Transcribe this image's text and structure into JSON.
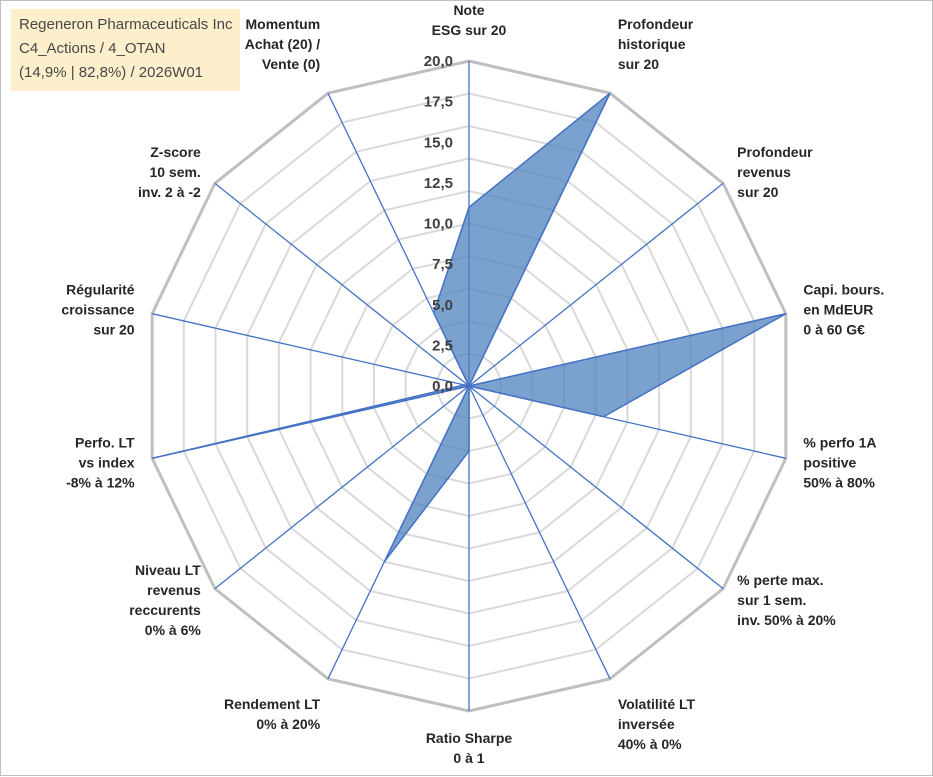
{
  "chart_data": {
    "type": "radar",
    "title": [
      "Regeneron Pharmaceuticals Inc",
      "C4_Actions / 4_OTAN",
      "(14,9% | 82,8%) / 2026W01"
    ],
    "rlim": [
      0,
      20
    ],
    "ticks": [
      "0,0",
      "2,5",
      "5,0",
      "7,5",
      "10,0",
      "12,5",
      "15,0",
      "17,5",
      "20,0"
    ],
    "grid_levels": 10,
    "axes": [
      [
        "Note",
        "ESG sur 20"
      ],
      [
        "Profondeur",
        "historique",
        "sur 20"
      ],
      [
        "Profondeur",
        "revenus",
        "sur 20"
      ],
      [
        "Capi. bours.",
        "en MdEUR",
        "0 à 60 G€"
      ],
      [
        "% perfo 1A",
        "positive",
        "50% à 80%"
      ],
      [
        "% perte max.",
        "sur 1 sem.",
        "inv. 50% à 20%"
      ],
      [
        "Volatilité LT",
        "inversée",
        "40% à 0%"
      ],
      [
        "Ratio Sharpe",
        "0 à 1"
      ],
      [
        "Rendement LT",
        "0% à 20%"
      ],
      [
        "Niveau LT",
        "revenus",
        "reccurents",
        "0% à 6%"
      ],
      [
        "Perfo. LT",
        "vs index",
        "-8% à 12%"
      ],
      [
        "Régularité",
        "croissance",
        "sur 20"
      ],
      [
        "Z-score",
        "10 sem.",
        "inv. 2 à -2"
      ],
      [
        "Momentum",
        "Achat (20) /",
        "Vente (0)"
      ]
    ],
    "series": [
      {
        "name": "Regeneron Pharmaceuticals Inc",
        "values": [
          11,
          20,
          0,
          20,
          8.5,
          0,
          0,
          4,
          12,
          0,
          20,
          0.3,
          0,
          5
        ],
        "color": "#4f81bd"
      }
    ]
  }
}
